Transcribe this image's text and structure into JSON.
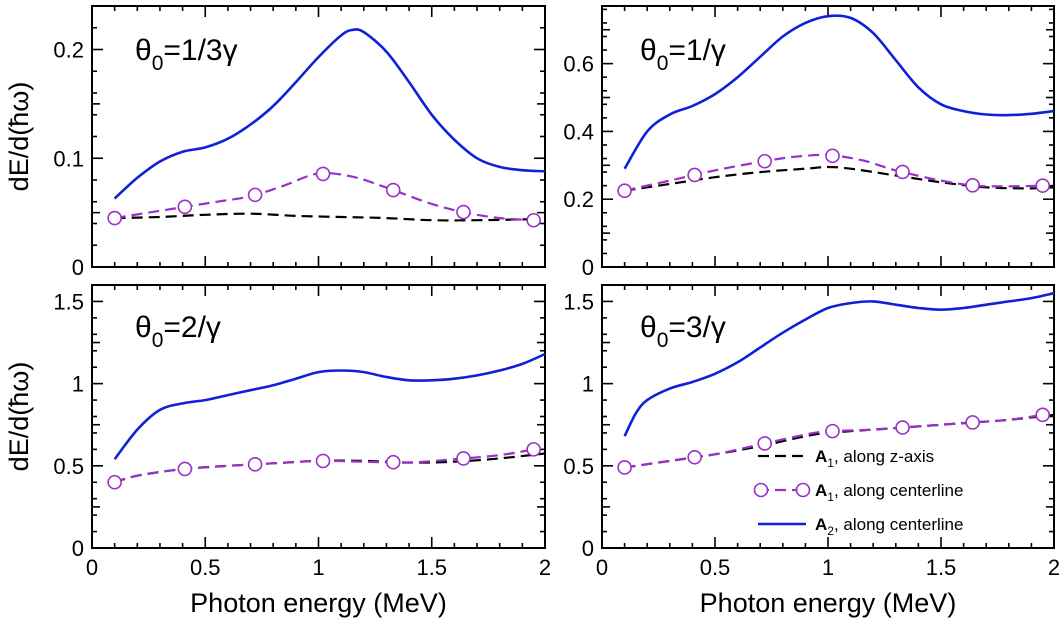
{
  "chart_data": [
    {
      "id": "p1",
      "type": "line",
      "title": {
        "symbol": "θ",
        "sub": "0",
        "rest": "=1/3γ"
      },
      "xlim": [
        0,
        2
      ],
      "ylim": [
        0,
        0.24
      ],
      "yticks": [
        0,
        0.1,
        0.2
      ],
      "yticklabels": [
        "0",
        "0.1",
        "0.2"
      ],
      "ymidticks": [
        0.05,
        0.15
      ],
      "xticks": [
        0,
        0.5,
        1,
        1.5,
        2
      ],
      "xticklabels": [],
      "ylabel": "dE/d(ħω)",
      "xlabel": "",
      "series": [
        {
          "name": "A1, along z-axis",
          "style": "dashed-black",
          "x": [
            0.1,
            0.3,
            0.5,
            0.7,
            0.9,
            1.1,
            1.3,
            1.5,
            1.7,
            1.95
          ],
          "y": [
            0.045,
            0.046,
            0.048,
            0.049,
            0.047,
            0.046,
            0.045,
            0.043,
            0.043,
            0.044
          ]
        },
        {
          "name": "A1, along centerline",
          "style": "dashed-purple-circles",
          "x": [
            0.1,
            0.25,
            0.4,
            0.55,
            0.7,
            0.85,
            1.0,
            1.15,
            1.3,
            1.5,
            1.65,
            1.8,
            1.95
          ],
          "y": [
            0.045,
            0.05,
            0.055,
            0.06,
            0.065,
            0.075,
            0.086,
            0.083,
            0.073,
            0.058,
            0.05,
            0.045,
            0.043
          ],
          "markers_x": [
            0.1,
            0.41,
            0.72,
            1.02,
            1.33,
            1.64,
            1.95
          ]
        },
        {
          "name": "A2, along centerline",
          "style": "solid-blue",
          "x": [
            0.1,
            0.2,
            0.3,
            0.4,
            0.5,
            0.6,
            0.7,
            0.8,
            0.9,
            1.0,
            1.1,
            1.15,
            1.2,
            1.3,
            1.4,
            1.5,
            1.6,
            1.7,
            1.8,
            1.9,
            2.0
          ],
          "y": [
            0.063,
            0.082,
            0.097,
            0.106,
            0.11,
            0.118,
            0.131,
            0.148,
            0.17,
            0.193,
            0.213,
            0.218,
            0.216,
            0.198,
            0.17,
            0.14,
            0.117,
            0.1,
            0.092,
            0.089,
            0.088
          ]
        }
      ]
    },
    {
      "id": "p2",
      "type": "line",
      "title": {
        "symbol": "θ",
        "sub": "0",
        "rest": "=1/γ"
      },
      "xlim": [
        0,
        2
      ],
      "ylim": [
        0,
        0.77
      ],
      "yticks": [
        0,
        0.2,
        0.4,
        0.6
      ],
      "yticklabels": [
        "0",
        "0.2",
        "0.4",
        "0.6"
      ],
      "ymidticks": [
        0.1,
        0.3,
        0.5,
        0.7
      ],
      "xticks": [
        0,
        0.5,
        1,
        1.5,
        2
      ],
      "xticklabels": [],
      "ylabel": "",
      "xlabel": "",
      "series": [
        {
          "name": "A1, along z-axis",
          "style": "dashed-black",
          "x": [
            0.1,
            0.3,
            0.5,
            0.7,
            0.9,
            1.0,
            1.1,
            1.3,
            1.5,
            1.7,
            1.9,
            2.0
          ],
          "y": [
            0.225,
            0.245,
            0.265,
            0.28,
            0.29,
            0.295,
            0.29,
            0.27,
            0.25,
            0.235,
            0.232,
            0.235
          ]
        },
        {
          "name": "A1, along centerline",
          "style": "dashed-purple-circles",
          "x": [
            0.1,
            0.3,
            0.5,
            0.7,
            0.85,
            1.0,
            1.15,
            1.3,
            1.5,
            1.65,
            1.8,
            1.95
          ],
          "y": [
            0.225,
            0.255,
            0.285,
            0.31,
            0.325,
            0.33,
            0.315,
            0.285,
            0.255,
            0.24,
            0.238,
            0.24
          ],
          "markers_x": [
            0.1,
            0.41,
            0.72,
            1.02,
            1.33,
            1.64,
            1.95
          ]
        },
        {
          "name": "A2, along centerline",
          "style": "solid-blue",
          "x": [
            0.1,
            0.2,
            0.3,
            0.4,
            0.5,
            0.6,
            0.7,
            0.8,
            0.9,
            1.0,
            1.1,
            1.2,
            1.3,
            1.4,
            1.5,
            1.6,
            1.7,
            1.8,
            1.9,
            2.0
          ],
          "y": [
            0.29,
            0.4,
            0.45,
            0.475,
            0.51,
            0.56,
            0.62,
            0.68,
            0.72,
            0.74,
            0.735,
            0.69,
            0.61,
            0.53,
            0.48,
            0.46,
            0.45,
            0.448,
            0.452,
            0.46
          ]
        }
      ]
    },
    {
      "id": "p3",
      "type": "line",
      "title": {
        "symbol": "θ",
        "sub": "0",
        "rest": "=2/γ"
      },
      "xlim": [
        0,
        2
      ],
      "ylim": [
        0,
        1.6
      ],
      "yticks": [
        0,
        0.5,
        1,
        1.5
      ],
      "yticklabels": [
        "0",
        "0.5",
        "1",
        "1.5"
      ],
      "ymidticks": [
        0.25,
        0.75,
        1.25
      ],
      "xticks": [
        0,
        0.5,
        1,
        1.5,
        2
      ],
      "xticklabels": [
        "0",
        "0.5",
        "1",
        "1.5",
        "2"
      ],
      "ylabel": "dE/d(ħω)",
      "xlabel": "Photon energy (MeV)",
      "series": [
        {
          "name": "A1, along z-axis",
          "style": "dashed-black",
          "x": [
            0.1,
            0.2,
            0.4,
            0.6,
            0.8,
            1.0,
            1.2,
            1.4,
            1.6,
            1.8,
            2.0
          ],
          "y": [
            0.4,
            0.44,
            0.48,
            0.5,
            0.515,
            0.53,
            0.53,
            0.52,
            0.525,
            0.545,
            0.575
          ]
        },
        {
          "name": "A1, along centerline",
          "style": "dashed-purple-circles",
          "x": [
            0.1,
            0.2,
            0.4,
            0.6,
            0.8,
            1.0,
            1.2,
            1.4,
            1.6,
            1.8,
            1.95
          ],
          "y": [
            0.4,
            0.44,
            0.48,
            0.5,
            0.515,
            0.53,
            0.525,
            0.52,
            0.54,
            0.565,
            0.6
          ],
          "markers_x": [
            0.1,
            0.41,
            0.72,
            1.02,
            1.33,
            1.64,
            1.95
          ]
        },
        {
          "name": "A2, along centerline",
          "style": "solid-blue",
          "x": [
            0.1,
            0.2,
            0.3,
            0.4,
            0.5,
            0.6,
            0.7,
            0.8,
            0.9,
            1.0,
            1.1,
            1.2,
            1.3,
            1.4,
            1.5,
            1.6,
            1.7,
            1.8,
            1.9,
            2.0
          ],
          "y": [
            0.54,
            0.72,
            0.84,
            0.88,
            0.9,
            0.93,
            0.96,
            0.99,
            1.03,
            1.07,
            1.08,
            1.07,
            1.04,
            1.02,
            1.02,
            1.03,
            1.05,
            1.08,
            1.12,
            1.18
          ]
        }
      ]
    },
    {
      "id": "p4",
      "type": "line",
      "title": {
        "symbol": "θ",
        "sub": "0",
        "rest": "=3/γ"
      },
      "xlim": [
        0,
        2
      ],
      "ylim": [
        0,
        1.6
      ],
      "yticks": [
        0,
        0.5,
        1,
        1.5
      ],
      "yticklabels": [
        "0",
        "0.5",
        "1",
        "1.5"
      ],
      "ymidticks": [
        0.25,
        0.75,
        1.25
      ],
      "xticks": [
        0,
        0.5,
        1,
        1.5,
        2
      ],
      "xticklabels": [
        "0",
        "0.5",
        "1",
        "1.5",
        "2"
      ],
      "ylabel": "",
      "xlabel": "Photon energy (MeV)",
      "series": [
        {
          "name": "A1, along z-axis",
          "style": "dashed-black",
          "x": [
            0.1,
            0.3,
            0.5,
            0.7,
            0.9,
            1.0,
            1.2,
            1.4,
            1.6,
            1.8,
            2.0
          ],
          "y": [
            0.49,
            0.53,
            0.57,
            0.62,
            0.68,
            0.7,
            0.72,
            0.74,
            0.76,
            0.78,
            0.81
          ]
        },
        {
          "name": "A1, along centerline",
          "style": "dashed-purple-circles",
          "x": [
            0.1,
            0.3,
            0.5,
            0.7,
            0.9,
            1.0,
            1.2,
            1.4,
            1.6,
            1.8,
            1.95
          ],
          "y": [
            0.49,
            0.53,
            0.57,
            0.63,
            0.69,
            0.71,
            0.72,
            0.74,
            0.76,
            0.78,
            0.81
          ],
          "markers_x": [
            0.1,
            0.41,
            0.72,
            1.02,
            1.33,
            1.64,
            1.95
          ]
        },
        {
          "name": "A2, along centerline",
          "style": "solid-blue",
          "x": [
            0.1,
            0.15,
            0.2,
            0.3,
            0.4,
            0.5,
            0.6,
            0.7,
            0.8,
            0.9,
            1.0,
            1.1,
            1.2,
            1.3,
            1.4,
            1.5,
            1.6,
            1.7,
            1.8,
            1.9,
            2.0
          ],
          "y": [
            0.68,
            0.82,
            0.9,
            0.97,
            1.01,
            1.06,
            1.13,
            1.22,
            1.31,
            1.39,
            1.46,
            1.49,
            1.5,
            1.48,
            1.46,
            1.45,
            1.46,
            1.48,
            1.5,
            1.52,
            1.55
          ]
        }
      ]
    }
  ],
  "legend": {
    "placement": "bottom-right of lower-right panel",
    "entries": [
      {
        "style": "dashed-black",
        "bold": "A",
        "sub": "1",
        "text": ", along z-axis"
      },
      {
        "style": "dashed-purple-circles",
        "bold": "A",
        "sub": "1",
        "text": ", along centerline"
      },
      {
        "style": "solid-blue",
        "bold": "A",
        "sub": "2",
        "text": ", along centerline"
      }
    ]
  },
  "colors": {
    "black": "#000000",
    "purple": "#9b30c8",
    "blue": "#1020d8",
    "marker_fill": "#ffffff"
  }
}
